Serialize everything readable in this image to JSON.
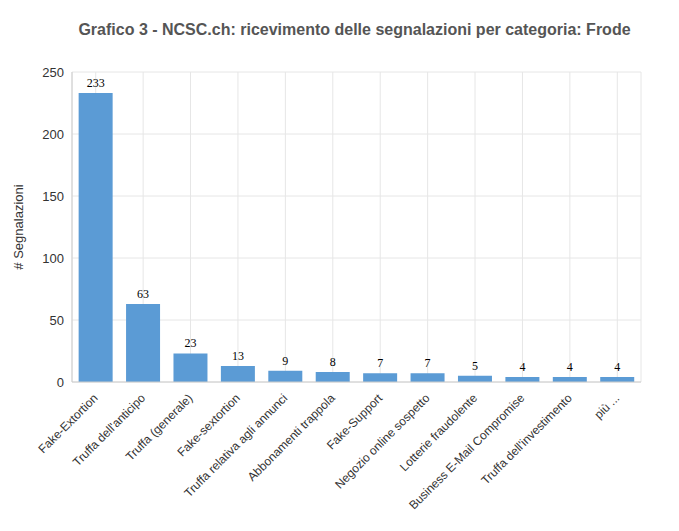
{
  "chart_data": {
    "type": "bar",
    "title": "Grafico 3 - NCSC.ch: ricevimento delle segnalazioni per categoria: Frode",
    "y_label": "# Segnalazioni",
    "categories": [
      "Fake-Extortion",
      "Truffa dell'anticipo",
      "Truffa (generale)",
      "Fake-sextortion",
      "Truffa relativa agli annunci",
      "Abbonamenti trappola",
      "Fake-Support",
      "Negozio online sospetto",
      "Lotterie fraudolente",
      "Business E-Mail Compromise",
      "Truffa dell'investimento",
      "più ..."
    ],
    "values": [
      233,
      63,
      23,
      13,
      9,
      8,
      7,
      7,
      5,
      4,
      4,
      4
    ],
    "color": "#5b9bd5",
    "ylim": [
      0,
      250
    ],
    "yticks": [
      0,
      50,
      100,
      150,
      200,
      250
    ],
    "grid": true,
    "data_labels": true
  }
}
